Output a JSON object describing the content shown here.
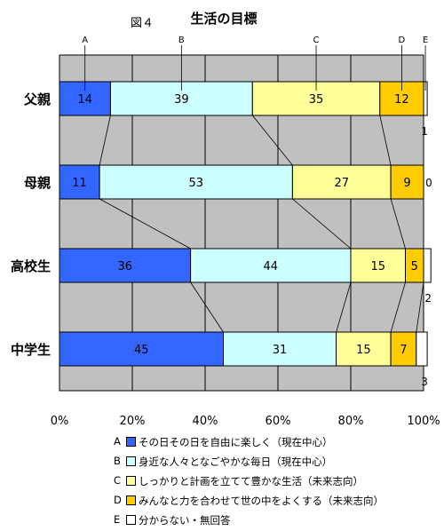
{
  "chart_data": {
    "type": "bar",
    "stacked": "percent",
    "orientation": "horizontal",
    "figure_label": "図４",
    "title": "生活の目標",
    "categories": [
      "父親",
      "母親",
      "高校生",
      "中学生"
    ],
    "series": [
      {
        "letter": "A",
        "name": "その日その日を自由に楽しく（現在中心）",
        "values": [
          14,
          11,
          36,
          45
        ],
        "color": "#3366FF"
      },
      {
        "letter": "B",
        "name": "身近な人々となごやかな毎日（現在中心）",
        "values": [
          39,
          53,
          44,
          31
        ],
        "color": "#CCFFFF"
      },
      {
        "letter": "C",
        "name": "しっかりと計画を立てて豊かな生活（未来志向）",
        "values": [
          35,
          27,
          15,
          15
        ],
        "color": "#FFFF99"
      },
      {
        "letter": "D",
        "name": "みんなと力を合わせて世の中をよくする（未来志向）",
        "values": [
          12,
          9,
          5,
          7
        ],
        "color": "#FFCC00"
      },
      {
        "letter": "E",
        "name": "分からない・無回答",
        "values": [
          1,
          0,
          2,
          3
        ],
        "color": "#FFFFFF"
      }
    ],
    "xticks": [
      "0%",
      "20%",
      "40%",
      "60%",
      "80%",
      "100%"
    ],
    "xlim": [
      0,
      100
    ],
    "grid": true,
    "legend_position": "bottom"
  }
}
